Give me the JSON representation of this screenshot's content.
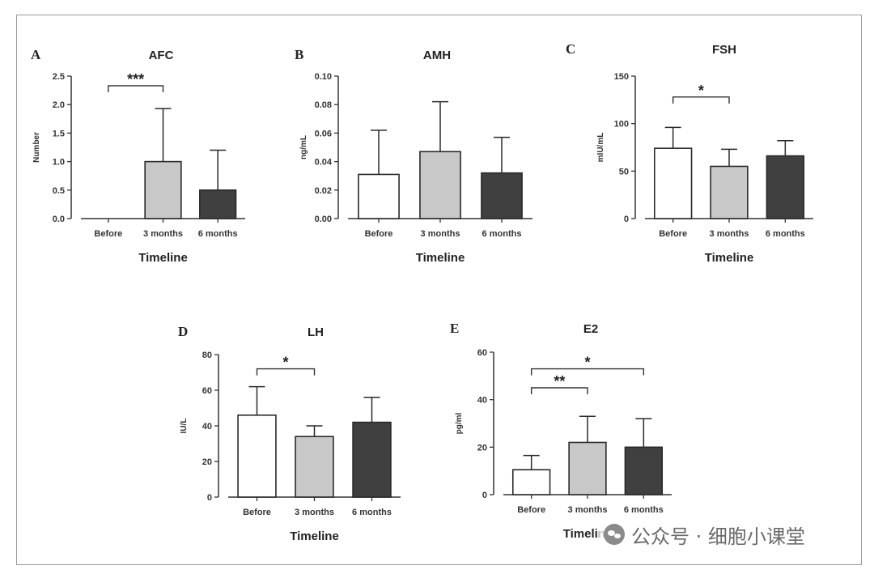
{
  "watermark": {
    "text": "公众号 · 细胞小课堂",
    "icon": "wechat-icon"
  },
  "colors": {
    "before": "#ffffff",
    "3 months": "#c8c8c8",
    "6 months": "#404040",
    "stroke": "#2a2a2a"
  },
  "chart_data": [
    {
      "id": "A",
      "type": "bar",
      "letter": "A",
      "title": "AFC",
      "xlabel": "Timeline",
      "ylabel": "Number",
      "categories": [
        "Before",
        "3 months",
        "6 months"
      ],
      "values": [
        0,
        1.0,
        0.5
      ],
      "errors": [
        0,
        0.93,
        0.7
      ],
      "ylim": [
        0,
        2.5
      ],
      "yticks": [
        "0.0",
        "0.5",
        "1.0",
        "1.5",
        "2.0",
        "2.5"
      ],
      "ytick_values": [
        0,
        0.5,
        1.0,
        1.5,
        2.0,
        2.5
      ],
      "show_xlabel": true,
      "significance": [
        {
          "from": 0,
          "to": 1,
          "label": "***",
          "level": 2.33
        }
      ]
    },
    {
      "id": "B",
      "type": "bar",
      "letter": "B",
      "title": "AMH",
      "xlabel": "Timeline",
      "ylabel": "ng/mL",
      "categories": [
        "Before",
        "3 months",
        "6 months"
      ],
      "values": [
        0.031,
        0.047,
        0.032
      ],
      "errors": [
        0.031,
        0.035,
        0.025
      ],
      "ylim": [
        0,
        0.1
      ],
      "yticks": [
        "0.00",
        "0.02",
        "0.04",
        "0.06",
        "0.08",
        "0.10"
      ],
      "ytick_values": [
        0,
        0.02,
        0.04,
        0.06,
        0.08,
        0.1
      ],
      "show_xlabel": true,
      "significance": []
    },
    {
      "id": "C",
      "type": "bar",
      "letter": "C",
      "title": "FSH",
      "xlabel": "Timeline",
      "ylabel": "mIU/mL",
      "categories": [
        "Before",
        "3 months",
        "6 months"
      ],
      "values": [
        74,
        55,
        66
      ],
      "errors": [
        22,
        18,
        16
      ],
      "ylim": [
        0,
        150
      ],
      "yticks": [
        "0",
        "50",
        "100",
        "150"
      ],
      "ytick_values": [
        0,
        50,
        100,
        150
      ],
      "show_xlabel": true,
      "significance": [
        {
          "from": 0,
          "to": 1,
          "label": "*",
          "level": 128
        }
      ]
    },
    {
      "id": "D",
      "type": "bar",
      "letter": "D",
      "title": "LH",
      "xlabel": "Timeline",
      "ylabel": "IU/L",
      "categories": [
        "Before",
        "3 months",
        "6 months"
      ],
      "values": [
        46,
        34,
        42
      ],
      "errors": [
        16,
        6,
        14
      ],
      "ylim": [
        0,
        80
      ],
      "yticks": [
        "0",
        "20",
        "40",
        "60",
        "80"
      ],
      "ytick_values": [
        0,
        20,
        40,
        60,
        80
      ],
      "show_xlabel": true,
      "significance": [
        {
          "from": 0,
          "to": 1,
          "label": "*",
          "level": 72
        }
      ]
    },
    {
      "id": "E",
      "type": "bar",
      "letter": "E",
      "title": "E2",
      "xlabel": "Timeline",
      "ylabel": "pg/ml",
      "categories": [
        "Before",
        "3 months",
        "6 months"
      ],
      "values": [
        10.5,
        22,
        20
      ],
      "errors": [
        6,
        11,
        12
      ],
      "ylim": [
        0,
        60
      ],
      "yticks": [
        "0",
        "20",
        "40",
        "60"
      ],
      "ytick_values": [
        0,
        20,
        40,
        60
      ],
      "show_xlabel": true,
      "significance": [
        {
          "from": 0,
          "to": 1,
          "label": "**",
          "level": 45
        },
        {
          "from": 0,
          "to": 2,
          "label": "*",
          "level": 53
        }
      ]
    }
  ]
}
